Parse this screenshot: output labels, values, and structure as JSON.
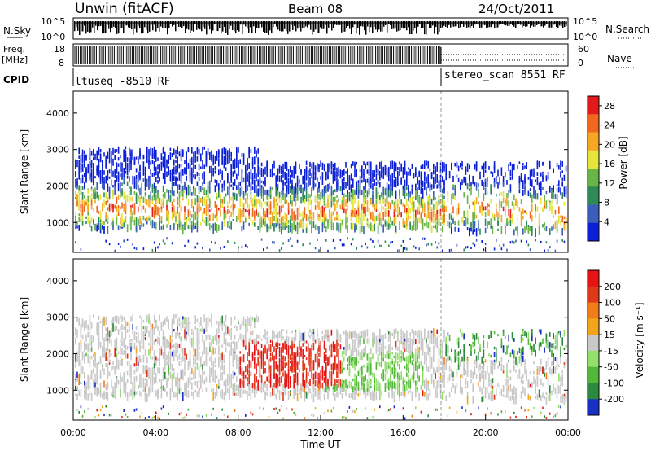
{
  "header": {
    "station": "Unwin (fitACF)",
    "beam": "Beam 08",
    "date": "24/Oct/2011"
  },
  "panels": {
    "nsky": {
      "label": "N.Sky",
      "right_label": "N.Search",
      "ticks_left": [
        "10^5",
        "10^0"
      ],
      "ticks_right": [
        "10^5",
        "10^0"
      ]
    },
    "freq": {
      "label_line1": "Freq.",
      "label_line2": "[MHz]",
      "right_label": "Nave",
      "ticks_left": [
        "18",
        "8"
      ],
      "ticks_right": [
        "60",
        "0"
      ]
    },
    "cpid": {
      "label": "CPID",
      "segments": [
        "ltuseq -8510 RF",
        "stereo_scan 8551 RF"
      ]
    }
  },
  "chart_data": [
    {
      "type": "heatmap",
      "name": "power",
      "ylabel": "Slant Range [km]",
      "xlabel": "Time UT",
      "x_ticks": [
        "00:00",
        "04:00",
        "08:00",
        "12:00",
        "16:00",
        "20:00",
        "00:00"
      ],
      "x_range_hours": [
        0,
        24
      ],
      "y_ticks": [
        1000,
        2000,
        3000,
        4000
      ],
      "y_range_km": [
        180,
        4600
      ],
      "colorbar": {
        "label": "Power [dB]",
        "ticks": [
          4,
          8,
          12,
          16,
          20,
          24,
          28
        ],
        "range": [
          0,
          30
        ],
        "colors": [
          "#0b1fd6",
          "#3b5fb8",
          "#2e8b57",
          "#69b548",
          "#e6e63a",
          "#f5a623",
          "#f0671e",
          "#e31a1c"
        ]
      }
    },
    {
      "type": "heatmap",
      "name": "velocity",
      "ylabel": "Slant Range [km]",
      "xlabel": "Time UT",
      "x_ticks": [
        "00:00",
        "04:00",
        "08:00",
        "12:00",
        "16:00",
        "20:00",
        "00:00"
      ],
      "x_range_hours": [
        0,
        24
      ],
      "y_ticks": [
        1000,
        2000,
        3000,
        4000
      ],
      "y_range_km": [
        180,
        4600
      ],
      "colorbar": {
        "label": "Velocity [m s⁻¹]",
        "ticks": [
          200,
          100,
          50,
          15,
          -15,
          -50,
          -100,
          -200
        ],
        "colors": [
          "#1a2fc4",
          "#2b8a3e",
          "#52b83a",
          "#94e06a",
          "#c8c8c8",
          "#f2a51a",
          "#f07d1a",
          "#e0391a",
          "#e61414"
        ]
      }
    }
  ],
  "time_axis_label": "Time UT"
}
